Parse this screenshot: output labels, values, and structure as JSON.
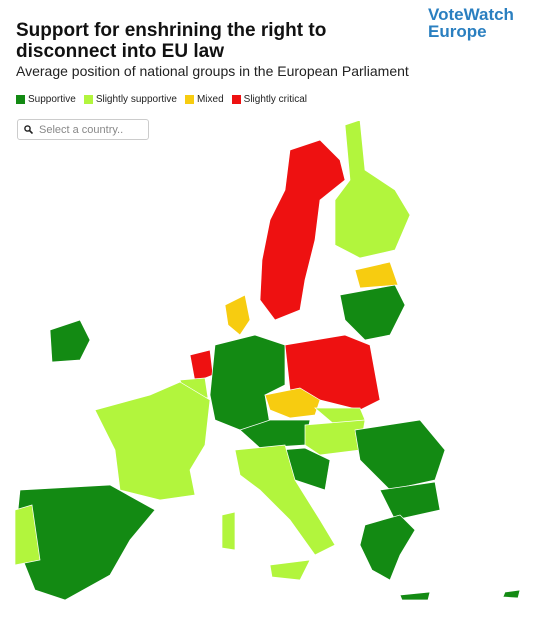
{
  "header": {
    "title": "Support for enshrining the right to disconnect into EU law",
    "subtitle": "Average position of national groups in the European Parliament"
  },
  "logo": {
    "line1": "VoteWatch",
    "line2": "Europe"
  },
  "legend": [
    {
      "label": "Supportive",
      "color": "#138a13"
    },
    {
      "label": "Slightly supportive",
      "color": "#b2f53d"
    },
    {
      "label": "Mixed",
      "color": "#f7cc10"
    },
    {
      "label": "Slightly critical",
      "color": "#ee1111"
    }
  ],
  "search": {
    "placeholder": "Select a country.."
  }
}
